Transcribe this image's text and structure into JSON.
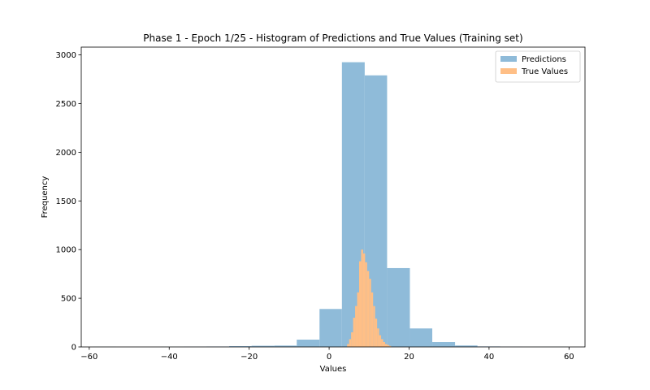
{
  "chart_data": {
    "type": "histogram",
    "title": "Phase 1 - Epoch 1/25 - Histogram of Predictions and True Values (Training set)",
    "xlabel": "Values",
    "ylabel": "Frequency",
    "xlim": [
      -62,
      64
    ],
    "ylim": [
      0,
      3080
    ],
    "x_ticks": [
      -60,
      -40,
      -20,
      0,
      20,
      40,
      60
    ],
    "y_ticks": [
      0,
      500,
      1000,
      1500,
      2000,
      2500,
      3000
    ],
    "legend_position": "top-right",
    "grid": false,
    "series": [
      {
        "name": "Predictions",
        "color": "#8fbbd9",
        "bin_edges": [
          -58.9,
          -53.3,
          -47.6,
          -42.0,
          -36.3,
          -30.7,
          -25.0,
          -19.4,
          -13.7,
          -8.1,
          -2.4,
          3.2,
          8.9,
          14.5,
          20.2,
          25.8,
          31.5,
          37.1,
          42.8,
          48.4,
          54.1,
          59.7
        ],
        "counts": [
          1,
          0,
          0,
          1,
          2,
          4,
          8,
          12,
          14,
          75,
          390,
          2925,
          2790,
          810,
          190,
          50,
          15,
          5,
          2,
          1,
          1
        ]
      },
      {
        "name": "True Values",
        "color": "#ffbf86",
        "bin_edges": [
          4.5,
          5.0,
          5.5,
          6.0,
          6.5,
          7.0,
          7.5,
          8.0,
          8.5,
          9.0,
          9.5,
          10.0,
          10.5,
          11.0,
          11.5,
          12.0,
          12.5,
          13.0,
          13.5,
          14.0,
          14.5,
          15.0,
          15.5
        ],
        "counts": [
          30,
          80,
          150,
          300,
          420,
          560,
          880,
          1000,
          960,
          870,
          780,
          700,
          560,
          420,
          290,
          190,
          120,
          80,
          50,
          30,
          20,
          10
        ]
      }
    ]
  }
}
